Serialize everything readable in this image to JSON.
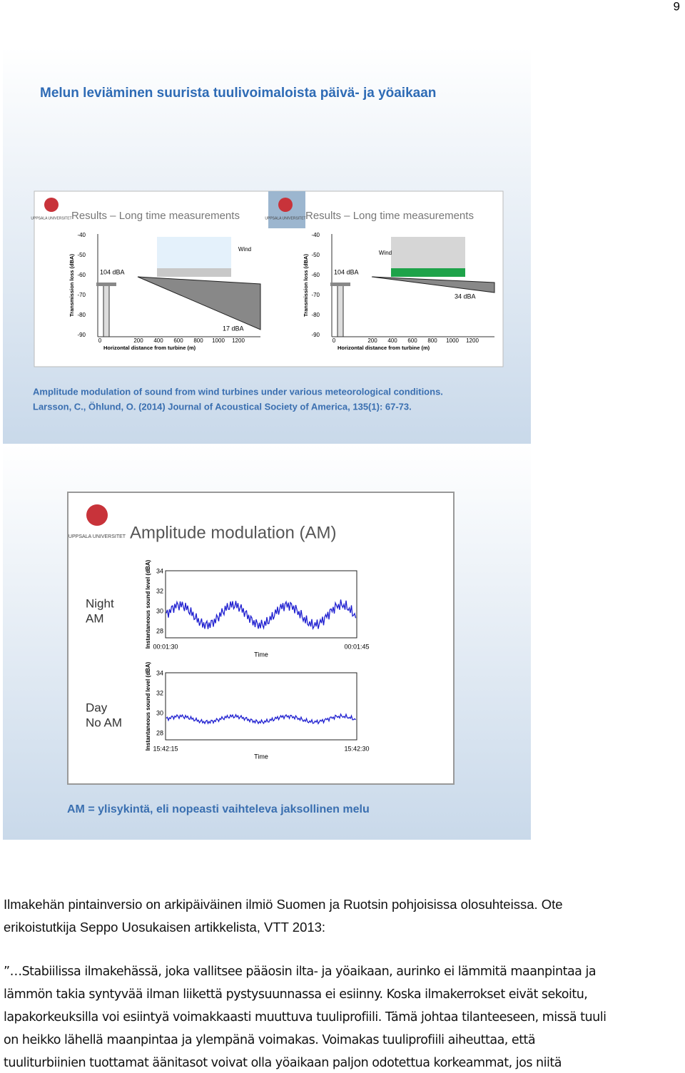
{
  "page_number": "9",
  "slide1": {
    "title": "Melun leviäminen suurista tuulivoimaloista päivä- ja yöaikaan",
    "panels": [
      {
        "logo": "UPPSALA UNIVERSITET",
        "header": "Results – Long time measurements",
        "ylabel": "Transmission loss (dBA)",
        "yticks": [
          "-40",
          "-50",
          "-60",
          "-70",
          "-80",
          "-90"
        ],
        "xticks": [
          "0",
          "200",
          "400",
          "600",
          "800",
          "1000",
          "1200"
        ],
        "xlabel": "Horizontal distance from turbine (m)",
        "source": "104 dBA",
        "far": "17 dBA",
        "wind": "Wind"
      },
      {
        "logo": "UPPSALA UNIVERSITET",
        "header": "Results – Long time measurements",
        "ylabel": "Transmission loss (dBA)",
        "yticks": [
          "-40",
          "-50",
          "-60",
          "-70",
          "-80",
          "-90"
        ],
        "xticks": [
          "0",
          "200",
          "400",
          "600",
          "800",
          "1000",
          "1200"
        ],
        "xlabel": "Horizontal distance from turbine (m)",
        "source": "104 dBA",
        "far": "34 dBA",
        "wind": "Wind"
      }
    ],
    "caption": [
      "Amplitude modulation of sound from wind turbines under various meteorological conditions.",
      "Larsson, C., Öhlund, O. (2014) Journal of Acoustical Society of America, 135(1): 67-73."
    ]
  },
  "slide2": {
    "logo": "UPPSALA UNIVERSITET",
    "title": "Amplitude modulation (AM)",
    "plots": [
      {
        "label": [
          "Night",
          "AM"
        ],
        "ylabel": "Instantaneous sound level (dBA)",
        "yticks": [
          "34",
          "32",
          "30",
          "28"
        ],
        "xticks": [
          "00:01:30",
          "00:01:45"
        ],
        "xlabel": "Time"
      },
      {
        "label": [
          "Day",
          "No AM"
        ],
        "ylabel": "Instantaneous sound level (dBA)",
        "yticks": [
          "34",
          "32",
          "30",
          "28"
        ],
        "xticks": [
          "15:42:15",
          "15:42:30"
        ],
        "xlabel": "Time"
      }
    ],
    "caption": "AM = ylisykintä, eli nopeasti vaihteleva jaksollinen melu"
  },
  "paragraph1": [
    "Ilmakehän pintainversio on arkipäiväinen ilmiö Suomen ja Ruotsin pohjoisissa olosuhteissa. Ote",
    "erikoistutkija Seppo Uosukaisen artikkelista, VTT 2013:"
  ],
  "paragraph2": [
    "”…Stabiilissa ilmakehässä, joka vallitsee pääosin ilta- ja yöaikaan, aurinko ei lämmitä maanpintaa ja",
    "lämmön takia syntyvää ilman liikettä pystysuunnassa ei esiinny. Koska ilmakerrokset eivät sekoitu,",
    "lapakorkeuksilla voi esiintyä voimakkaasti muuttuva tuuliprofiili. Tämä johtaa tilanteeseen, missä tuuli",
    "on heikko lähellä maanpintaa ja ylempänä voimakas. Voimakas tuuliprofiili aiheuttaa, että",
    "tuuliturbiinien tuottamat äänitasot voivat olla yöaikaan paljon odotettua korkeammat, jos niitä"
  ]
}
